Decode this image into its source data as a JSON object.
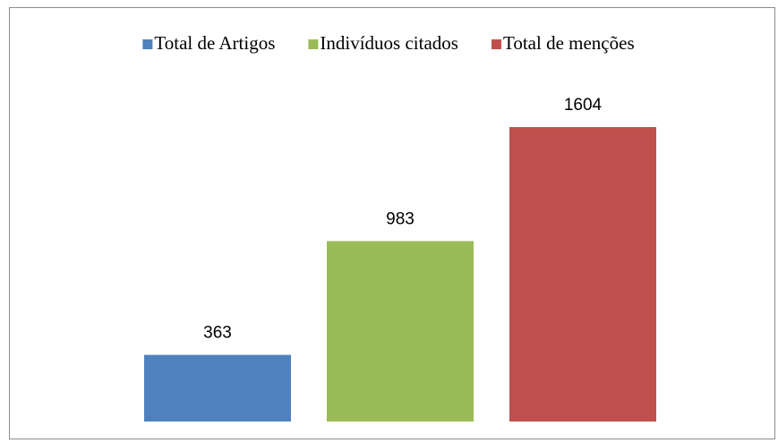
{
  "chart_data": {
    "type": "bar",
    "series": [
      {
        "name": "Total de Artigos",
        "color": "#4f81bd",
        "values": [
          363
        ]
      },
      {
        "name": "Indivíduos citados",
        "color": "#9bbb59",
        "values": [
          983
        ]
      },
      {
        "name": "Total de menções",
        "color": "#c0504d",
        "values": [
          1604
        ]
      }
    ],
    "legend": "top"
  }
}
